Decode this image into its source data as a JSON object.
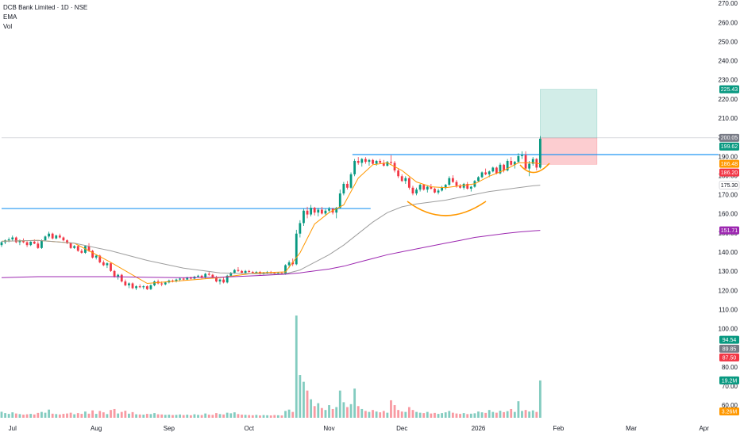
{
  "chart_data": {
    "type": "candlestick",
    "title": "DCB Bank Limited · 1D · NSE",
    "indicators": [
      "EMA",
      "Vol"
    ],
    "up_color": "#089981",
    "down_color": "#f23645",
    "xlim": [
      0,
      197
    ],
    "xticks": [
      {
        "value": 3,
        "label": "Jul"
      },
      {
        "value": 26,
        "label": "Aug"
      },
      {
        "value": 46,
        "label": "Sep"
      },
      {
        "value": 68,
        "label": "Oct"
      },
      {
        "value": 90,
        "label": "Nov"
      },
      {
        "value": 110,
        "label": "Dec"
      },
      {
        "value": 131,
        "label": "2026"
      },
      {
        "value": 153,
        "label": "Feb"
      },
      {
        "value": 173,
        "label": "Mar"
      },
      {
        "value": 193,
        "label": "Apr"
      }
    ],
    "ylim": [
      60,
      270
    ],
    "yticks": [
      {
        "value": 270,
        "label": "270.00"
      },
      {
        "value": 260,
        "label": "260.00"
      },
      {
        "value": 250,
        "label": "250.00"
      },
      {
        "value": 240,
        "label": "240.00"
      },
      {
        "value": 230,
        "label": "230.00"
      },
      {
        "value": 220,
        "label": "220.00"
      },
      {
        "value": 210,
        "label": "210.00"
      },
      {
        "value": 200,
        "label": "200.00"
      },
      {
        "value": 190,
        "label": "190.00"
      },
      {
        "value": 180,
        "label": "180.00"
      },
      {
        "value": 170,
        "label": "170.00"
      },
      {
        "value": 160,
        "label": "160.00"
      },
      {
        "value": 150,
        "label": "150.00"
      },
      {
        "value": 140,
        "label": "140.00"
      },
      {
        "value": 130,
        "label": "130.00"
      },
      {
        "value": 120,
        "label": "120.00"
      },
      {
        "value": 110,
        "label": "110.00"
      },
      {
        "value": 100,
        "label": "100.00"
      },
      {
        "value": 90,
        "label": "90.00"
      },
      {
        "value": 80,
        "label": "80.00"
      },
      {
        "value": 70,
        "label": "70.00"
      },
      {
        "value": 60,
        "label": "60.00"
      }
    ],
    "ohlc": [
      [
        144,
        146,
        143,
        145.5
      ],
      [
        145.5,
        147,
        144.5,
        146.5
      ],
      [
        146.5,
        148,
        145.5,
        147
      ],
      [
        147,
        149,
        146,
        148
      ],
      [
        148,
        148.5,
        145,
        145.5
      ],
      [
        145.5,
        147,
        144,
        146.5
      ],
      [
        146.5,
        147.5,
        145,
        145.5
      ],
      [
        145.5,
        146,
        143,
        144
      ],
      [
        144,
        146,
        143.5,
        145.8
      ],
      [
        145.8,
        147,
        144.5,
        144.8
      ],
      [
        144.8,
        146,
        142,
        142.5
      ],
      [
        142.5,
        147,
        142,
        146.5
      ],
      [
        146.5,
        149,
        146,
        148.5
      ],
      [
        148.5,
        151,
        147.5,
        150
      ],
      [
        150,
        150.5,
        147,
        147.5
      ],
      [
        147.5,
        149.5,
        147,
        149
      ],
      [
        149,
        150,
        147.5,
        148
      ],
      [
        148,
        148.5,
        146,
        146.5
      ],
      [
        146.5,
        147,
        144.5,
        145
      ],
      [
        145,
        145.5,
        142,
        142.5
      ],
      [
        142.5,
        144,
        142,
        143.5
      ],
      [
        143.5,
        144,
        140.5,
        141
      ],
      [
        141,
        142,
        139.5,
        140
      ],
      [
        140,
        144,
        139.5,
        143.5
      ],
      [
        143.5,
        145,
        140.5,
        141
      ],
      [
        141,
        141.5,
        137,
        137.5
      ],
      [
        137.5,
        139,
        136.5,
        138.5
      ],
      [
        138.5,
        139,
        134.5,
        135
      ],
      [
        135,
        136,
        133,
        133.5
      ],
      [
        133.5,
        135,
        132,
        134.5
      ],
      [
        134.5,
        135,
        130,
        130.5
      ],
      [
        130.5,
        131,
        127,
        127.5
      ],
      [
        127.5,
        129,
        126,
        128.5
      ],
      [
        128.5,
        129,
        124.5,
        125
      ],
      [
        125,
        126,
        122.5,
        123
      ],
      [
        123,
        124.5,
        121.5,
        124
      ],
      [
        124,
        124.5,
        121,
        121.5
      ],
      [
        121.5,
        123,
        120.5,
        122.5
      ],
      [
        122.5,
        123.5,
        121.5,
        122
      ],
      [
        122,
        123,
        121,
        122.5
      ],
      [
        122.5,
        123,
        120.5,
        121
      ],
      [
        121,
        123.5,
        120.5,
        123
      ],
      [
        123,
        125.5,
        122.5,
        125
      ],
      [
        125,
        126,
        123.5,
        124
      ],
      [
        124,
        125,
        122.5,
        123.5
      ],
      [
        123.5,
        125,
        123,
        124.5
      ],
      [
        124.5,
        126,
        124,
        125.5
      ],
      [
        125.5,
        126,
        124.5,
        125
      ],
      [
        125,
        126.5,
        124.5,
        126
      ],
      [
        126,
        127,
        125,
        126.5
      ],
      [
        126.5,
        127,
        125.5,
        126
      ],
      [
        126,
        127.5,
        125.5,
        127
      ],
      [
        127,
        127.5,
        126,
        126.5
      ],
      [
        126.5,
        128,
        126,
        127.5
      ],
      [
        127.5,
        128.5,
        127,
        128
      ],
      [
        128,
        128.5,
        126.5,
        127
      ],
      [
        127,
        129.5,
        126.5,
        129
      ],
      [
        129,
        130,
        128,
        128.5
      ],
      [
        128.5,
        129,
        126.5,
        127
      ],
      [
        127,
        128,
        124.5,
        125
      ],
      [
        125,
        126.5,
        123.5,
        126
      ],
      [
        126,
        127,
        124,
        124.5
      ],
      [
        124.5,
        128.5,
        124,
        128
      ],
      [
        128,
        130,
        127.5,
        129.5
      ],
      [
        129.5,
        131.5,
        129,
        131
      ],
      [
        131,
        132.5,
        130,
        130.5
      ],
      [
        130.5,
        131,
        129,
        129.5
      ],
      [
        129.5,
        131,
        129,
        130.5
      ],
      [
        130.5,
        131,
        129.5,
        130
      ],
      [
        130,
        130.5,
        129,
        129.5
      ],
      [
        129.5,
        130.5,
        129,
        130
      ],
      [
        130,
        130.5,
        128.5,
        129
      ],
      [
        129,
        130,
        128.5,
        129.5
      ],
      [
        129.5,
        130.5,
        129,
        130
      ],
      [
        130,
        130.5,
        129,
        129.5
      ],
      [
        129.5,
        130,
        128.5,
        129
      ],
      [
        129,
        130,
        128.5,
        129.5
      ],
      [
        129.5,
        130,
        128.5,
        129
      ],
      [
        129,
        134,
        128.5,
        133.5
      ],
      [
        133.5,
        136,
        132,
        135
      ],
      [
        135,
        137,
        133,
        134
      ],
      [
        134,
        152,
        133.5,
        150
      ],
      [
        150,
        157,
        148,
        155.5
      ],
      [
        155.5,
        163,
        154,
        162
      ],
      [
        162,
        164,
        158,
        160
      ],
      [
        160,
        165,
        159,
        163.5
      ],
      [
        163.5,
        164,
        159.5,
        161
      ],
      [
        161,
        163.5,
        159,
        162.5
      ],
      [
        162.5,
        164,
        160,
        160.5
      ],
      [
        160.5,
        163,
        159.5,
        162
      ],
      [
        162,
        164,
        161,
        163
      ],
      [
        163,
        163.5,
        160,
        161
      ],
      [
        161,
        164,
        158,
        163.5
      ],
      [
        163.5,
        173,
        163,
        171
      ],
      [
        171,
        177,
        170,
        176
      ],
      [
        176,
        177.5,
        173,
        174
      ],
      [
        174,
        182,
        173.5,
        181
      ],
      [
        181,
        189,
        180,
        188
      ],
      [
        188,
        190,
        186,
        187
      ],
      [
        187,
        189.5,
        185,
        189
      ],
      [
        189,
        190,
        186.5,
        187.5
      ],
      [
        187.5,
        189,
        185.5,
        188.5
      ],
      [
        188.5,
        189,
        186,
        186.5
      ],
      [
        186.5,
        188.5,
        185.5,
        188
      ],
      [
        188,
        189,
        186.5,
        187
      ],
      [
        187,
        188.5,
        185,
        185.5
      ],
      [
        185.5,
        188,
        185,
        187.5
      ],
      [
        187.5,
        191,
        186,
        187
      ],
      [
        187,
        188,
        182,
        183
      ],
      [
        183,
        184,
        179,
        180
      ],
      [
        180,
        181,
        177,
        177.5
      ],
      [
        177.5,
        180,
        176,
        179
      ],
      [
        179,
        179.5,
        173,
        174
      ],
      [
        174,
        175,
        170,
        171
      ],
      [
        171,
        174,
        170,
        173
      ],
      [
        173,
        176,
        172,
        175.5
      ],
      [
        175.5,
        176,
        172.5,
        173
      ],
      [
        173,
        175,
        171.5,
        174.5
      ],
      [
        174.5,
        176,
        173,
        173.5
      ],
      [
        173.5,
        174,
        171,
        171.5
      ],
      [
        171.5,
        173.5,
        170.5,
        172.5
      ],
      [
        172.5,
        175,
        172,
        174
      ],
      [
        174,
        176,
        173,
        175.5
      ],
      [
        175.5,
        180,
        175,
        179
      ],
      [
        179,
        180.5,
        176.5,
        177
      ],
      [
        177,
        178,
        174,
        175
      ],
      [
        175,
        176,
        173.5,
        174
      ],
      [
        174,
        176.5,
        173,
        176
      ],
      [
        176,
        177,
        173,
        173.5
      ],
      [
        173.5,
        175,
        172,
        174.5
      ],
      [
        174.5,
        178,
        174,
        177.5
      ],
      [
        177.5,
        180,
        177,
        179.5
      ],
      [
        179.5,
        182.5,
        179,
        182
      ],
      [
        182,
        184,
        180.5,
        181
      ],
      [
        181,
        183,
        179.5,
        182.5
      ],
      [
        182.5,
        185,
        182,
        184.5
      ],
      [
        184.5,
        185,
        181,
        181.5
      ],
      [
        181.5,
        187,
        181,
        186
      ],
      [
        186,
        186.5,
        182,
        183
      ],
      [
        183,
        189,
        182.5,
        188
      ],
      [
        188,
        190,
        185.5,
        186
      ],
      [
        186,
        188,
        184,
        187.5
      ],
      [
        187.5,
        192,
        187,
        190.5
      ],
      [
        190.5,
        193,
        189,
        191
      ],
      [
        191,
        193,
        183,
        184
      ],
      [
        184,
        188,
        180,
        186.5
      ],
      [
        186.5,
        190,
        185.5,
        189
      ],
      [
        189,
        189.5,
        183,
        184.5
      ],
      [
        184.5,
        201,
        184,
        199.62
      ]
    ],
    "volume": [
      3.1,
      2.4,
      2.0,
      2.8,
      2.2,
      1.9,
      1.6,
      1.8,
      2.0,
      1.7,
      2.5,
      3.0,
      2.6,
      4.2,
      2.1,
      1.9,
      1.7,
      2.0,
      2.2,
      2.6,
      1.8,
      2.4,
      2.0,
      3.2,
      2.1,
      3.8,
      2.0,
      3.5,
      2.8,
      1.9,
      4.0,
      4.5,
      2.2,
      3.0,
      3.6,
      2.1,
      2.9,
      1.8,
      1.7,
      1.6,
      2.0,
      1.9,
      2.4,
      1.8,
      1.7,
      1.5,
      1.6,
      1.4,
      1.5,
      1.7,
      1.4,
      1.6,
      1.3,
      1.8,
      1.5,
      1.4,
      2.2,
      1.6,
      1.5,
      2.4,
      1.9,
      1.7,
      2.6,
      2.3,
      2.8,
      1.9,
      1.6,
      1.5,
      1.4,
      1.3,
      1.5,
      1.2,
      1.4,
      1.3,
      1.2,
      1.4,
      1.3,
      1.2,
      3.5,
      4.2,
      3.0,
      52.6,
      22.0,
      18.5,
      14.0,
      9.5,
      6.0,
      7.5,
      5.0,
      4.0,
      6.5,
      4.5,
      5.5,
      14.0,
      8.0,
      5.5,
      7.0,
      15.0,
      6.0,
      4.5,
      3.5,
      3.0,
      4.0,
      3.2,
      2.8,
      3.5,
      2.6,
      9.0,
      6.5,
      4.0,
      3.2,
      3.0,
      5.5,
      4.0,
      3.0,
      2.6,
      2.4,
      3.0,
      2.2,
      2.5,
      2.0,
      2.4,
      2.8,
      3.5,
      2.6,
      2.2,
      2.0,
      2.4,
      1.9,
      2.1,
      2.3,
      3.2,
      2.8,
      2.5,
      4.0,
      3.0,
      2.6,
      3.6,
      2.9,
      3.4,
      4.5,
      3.0,
      8.5,
      3.5,
      4.0,
      3.2,
      3.8,
      3.0,
      19.2
    ],
    "ema": [
      {
        "color": "#ff9800",
        "x": [
          0,
          10,
          20,
          30,
          40,
          50,
          60,
          70,
          78,
          82,
          86,
          90,
          94,
          98,
          102,
          106,
          110,
          114,
          118,
          122,
          126,
          130,
          134,
          138,
          142,
          146,
          148
        ],
        "values": [
          146,
          146.5,
          145,
          135,
          124,
          125.5,
          127,
          129.5,
          130,
          140,
          155,
          161,
          165,
          179,
          186,
          187,
          183,
          177,
          174.5,
          174,
          175,
          176,
          180,
          183,
          187,
          187,
          186.48
        ]
      },
      {
        "color": "#9e9e9e",
        "x": [
          0,
          10,
          20,
          30,
          40,
          50,
          60,
          70,
          78,
          82,
          86,
          90,
          94,
          98,
          102,
          106,
          110,
          114,
          118,
          122,
          126,
          130,
          134,
          138,
          142,
          146,
          148
        ],
        "values": [
          146,
          146.5,
          145,
          141,
          136,
          132,
          129.5,
          129,
          129,
          131,
          135,
          139,
          144,
          150,
          156,
          161,
          164,
          165.5,
          166.5,
          167.5,
          169,
          170.5,
          172,
          173,
          174,
          175,
          175.3
        ]
      },
      {
        "color": "#9c27b0",
        "x": [
          0,
          10,
          20,
          30,
          40,
          50,
          60,
          70,
          78,
          82,
          86,
          90,
          94,
          98,
          102,
          106,
          110,
          114,
          118,
          122,
          126,
          130,
          134,
          138,
          142,
          146,
          148
        ],
        "values": [
          127,
          127.5,
          127.5,
          127.5,
          127.2,
          127,
          127.2,
          128,
          128.8,
          129.5,
          130.5,
          131.5,
          133,
          135,
          137,
          139,
          140.5,
          142,
          143.5,
          145,
          146.5,
          148,
          149,
          150,
          150.8,
          151.4,
          151.71
        ]
      }
    ],
    "levels": [
      {
        "value": 163.1,
        "x": [
          0,
          101.4
        ],
        "color": "#2196f3"
      },
      {
        "value": 191.3,
        "x": [
          96.4,
          197
        ],
        "color": "#2196f3"
      }
    ],
    "position": {
      "entry": 200.05,
      "target": 225.43,
      "stop": 186.2
    },
    "price_tags": [
      {
        "value": 225.43,
        "color": "#089981"
      },
      {
        "value": 200.05,
        "color": "#787b86"
      },
      {
        "value": 199.62,
        "color": "#089981"
      },
      {
        "value": 186.48,
        "color": "#ff9800"
      },
      {
        "value": 186.2,
        "label": "186.20",
        "color": "#f23645"
      },
      {
        "value": 175.3,
        "label": "175.30",
        "color": "#ffffff"
      },
      {
        "value": 151.71,
        "color": "#9c27b0"
      },
      {
        "value": 94.54,
        "color": "#089981"
      },
      {
        "value": 89.85,
        "color": "#787b86"
      },
      {
        "value": 87.5,
        "label": "87.50",
        "color": "#f23645"
      }
    ],
    "volume_tags": [
      {
        "value": 19.2,
        "label": "19.2M",
        "color": "#089981"
      },
      {
        "value": 3.26,
        "label": "3.26M",
        "color": "#ff9800"
      }
    ]
  }
}
